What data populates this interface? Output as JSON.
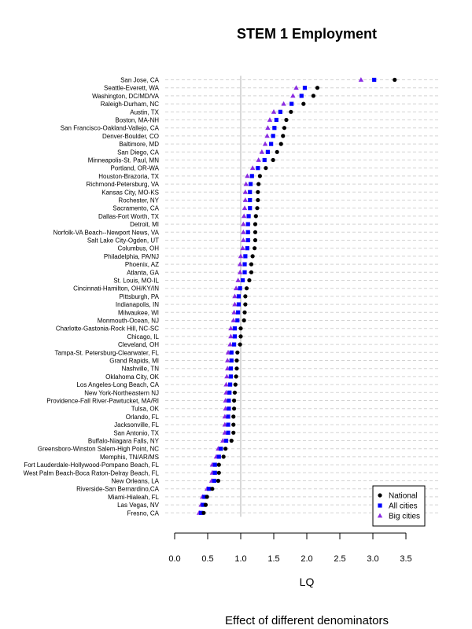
{
  "chart_data": {
    "type": "scatter",
    "title": "STEM 1 Employment",
    "xlabel": "LQ",
    "caption": "Effect of different denominators",
    "xlim": [
      -0.05,
      3.9
    ],
    "xticks": [
      0.0,
      0.5,
      1.0,
      1.5,
      2.0,
      2.5,
      3.0,
      3.5
    ],
    "xtick_labels": [
      "0.0",
      "0.5",
      "1.0",
      "1.5",
      "2.0",
      "2.5",
      "3.0",
      "3.5"
    ],
    "reference_line": 1.0,
    "grid": true,
    "legend_position": "bottom-right",
    "categories": [
      "San Jose, CA",
      "Seattle-Everett, WA",
      "Washington, DC/MD/VA",
      "Raleigh-Durham, NC",
      "Austin, TX",
      "Boston, MA-NH",
      "San Francisco-Oakland-Vallejo, CA",
      "Denver-Boulder, CO",
      "Baltimore, MD",
      "San Diego, CA",
      "Minneapolis-St. Paul, MN",
      "Portland, OR-WA",
      "Houston-Brazoria, TX",
      "Richmond-Petersburg, VA",
      "Kansas City, MO-KS",
      "Rochester, NY",
      "Sacramento, CA",
      "Dallas-Fort Worth, TX",
      "Detroit, MI",
      "Norfolk-VA Beach--Newport News, VA",
      "Salt Lake City-Ogden, UT",
      "Columbus, OH",
      "Philadelphia, PA/NJ",
      "Phoenix, AZ",
      "Atlanta, GA",
      "St. Louis, MO-IL",
      "Cincinnati-Hamilton, OH/KY/IN",
      "Pittsburgh, PA",
      "Indianapolis, IN",
      "Milwaukee, WI",
      "Monmouth-Ocean, NJ",
      "Charlotte-Gastonia-Rock Hill, NC-SC",
      "Chicago, IL",
      "Cleveland, OH",
      "Tampa-St. Petersburg-Clearwater, FL",
      "Grand Rapids, MI",
      "Nashville, TN",
      "Oklahoma City, OK",
      "Los Angeles-Long Beach, CA",
      "New York-Northeastern NJ",
      "Providence-Fall River-Pawtucket, MA/RI",
      "Tulsa, OK",
      "Orlando, FL",
      "Jacksonville, FL",
      "San Antonio, TX",
      "Buffalo-Niagara Falls, NY",
      "Greensboro-Winston Salem-High Point, NC",
      "Memphis, TN/AR/MS",
      "Fort Lauderdale-Hollywood-Pompano Beach, FL",
      "West Palm Beach-Boca Raton-Delray Beach, FL",
      "New Orleans, LA",
      "Riverside-San Bernardino,CA",
      "Miami-Hialeah, FL",
      "Las Vegas, NV",
      "Fresno, CA"
    ],
    "series": [
      {
        "name": "National",
        "marker": "circle",
        "color": "#000000",
        "values": [
          3.33,
          2.16,
          2.1,
          1.95,
          1.76,
          1.69,
          1.66,
          1.64,
          1.61,
          1.55,
          1.49,
          1.38,
          1.29,
          1.27,
          1.26,
          1.26,
          1.25,
          1.23,
          1.22,
          1.22,
          1.22,
          1.21,
          1.18,
          1.16,
          1.16,
          1.13,
          1.09,
          1.07,
          1.07,
          1.06,
          1.05,
          1.0,
          1.0,
          0.99,
          0.95,
          0.94,
          0.94,
          0.93,
          0.92,
          0.91,
          0.9,
          0.9,
          0.89,
          0.89,
          0.89,
          0.86,
          0.77,
          0.74,
          0.67,
          0.67,
          0.66,
          0.57,
          0.49,
          0.47,
          0.44
        ]
      },
      {
        "name": "All cities",
        "marker": "square",
        "color": "#0000ff",
        "values": [
          3.02,
          1.97,
          1.92,
          1.77,
          1.6,
          1.54,
          1.51,
          1.49,
          1.46,
          1.41,
          1.36,
          1.26,
          1.17,
          1.15,
          1.14,
          1.14,
          1.14,
          1.12,
          1.11,
          1.11,
          1.11,
          1.1,
          1.07,
          1.06,
          1.06,
          1.03,
          0.99,
          0.97,
          0.97,
          0.96,
          0.95,
          0.91,
          0.91,
          0.9,
          0.86,
          0.86,
          0.85,
          0.85,
          0.84,
          0.83,
          0.82,
          0.82,
          0.81,
          0.81,
          0.81,
          0.78,
          0.7,
          0.67,
          0.61,
          0.61,
          0.6,
          0.52,
          0.45,
          0.43,
          0.4
        ]
      },
      {
        "name": "Big cities",
        "marker": "triangle",
        "color": "#8a2be2",
        "values": [
          2.82,
          1.84,
          1.79,
          1.65,
          1.5,
          1.44,
          1.41,
          1.4,
          1.37,
          1.32,
          1.27,
          1.18,
          1.1,
          1.08,
          1.07,
          1.07,
          1.06,
          1.05,
          1.04,
          1.04,
          1.04,
          1.03,
          1.0,
          0.99,
          0.99,
          0.96,
          0.93,
          0.91,
          0.91,
          0.9,
          0.89,
          0.85,
          0.85,
          0.84,
          0.81,
          0.8,
          0.8,
          0.79,
          0.78,
          0.78,
          0.77,
          0.77,
          0.76,
          0.76,
          0.76,
          0.73,
          0.66,
          0.63,
          0.57,
          0.57,
          0.56,
          0.49,
          0.42,
          0.4,
          0.37
        ]
      }
    ]
  }
}
